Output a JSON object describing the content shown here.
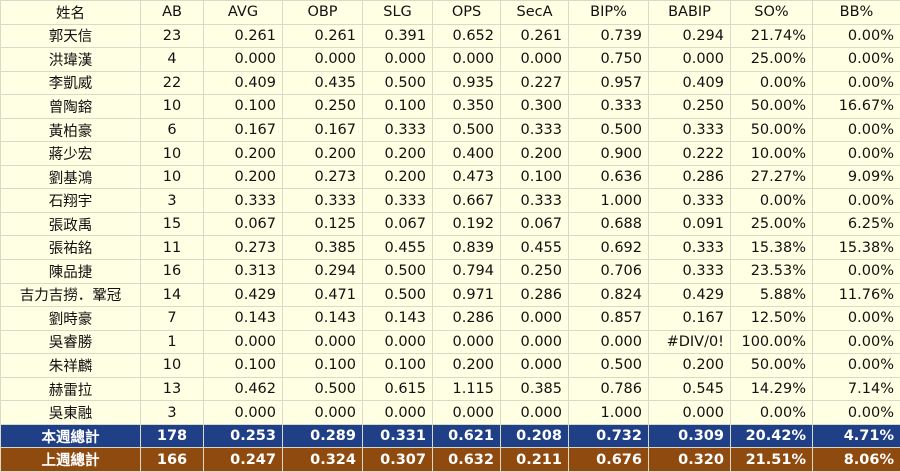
{
  "table": {
    "header": [
      "姓名",
      "AB",
      "AVG",
      "OBP",
      "SLG",
      "OPS",
      "SecA",
      "BIP%",
      "BABIP",
      "SO%",
      "BB%"
    ],
    "rows": [
      [
        "郭天信",
        "23",
        "0.261",
        "0.261",
        "0.391",
        "0.652",
        "0.261",
        "0.739",
        "0.294",
        "21.74%",
        "0.00%"
      ],
      [
        "洪瑋漢",
        "4",
        "0.000",
        "0.000",
        "0.000",
        "0.000",
        "0.000",
        "0.750",
        "0.000",
        "25.00%",
        "0.00%"
      ],
      [
        "李凱威",
        "22",
        "0.409",
        "0.435",
        "0.500",
        "0.935",
        "0.227",
        "0.957",
        "0.409",
        "0.00%",
        "0.00%"
      ],
      [
        "曾陶鎔",
        "10",
        "0.100",
        "0.250",
        "0.100",
        "0.350",
        "0.300",
        "0.333",
        "0.250",
        "50.00%",
        "16.67%"
      ],
      [
        "黃柏豪",
        "6",
        "0.167",
        "0.167",
        "0.333",
        "0.500",
        "0.333",
        "0.500",
        "0.333",
        "50.00%",
        "0.00%"
      ],
      [
        "蔣少宏",
        "10",
        "0.200",
        "0.200",
        "0.200",
        "0.400",
        "0.200",
        "0.900",
        "0.222",
        "10.00%",
        "0.00%"
      ],
      [
        "劉基鴻",
        "10",
        "0.200",
        "0.273",
        "0.200",
        "0.473",
        "0.100",
        "0.636",
        "0.286",
        "27.27%",
        "9.09%"
      ],
      [
        "石翔宇",
        "3",
        "0.333",
        "0.333",
        "0.333",
        "0.667",
        "0.333",
        "1.000",
        "0.333",
        "0.00%",
        "0.00%"
      ],
      [
        "張政禹",
        "15",
        "0.067",
        "0.125",
        "0.067",
        "0.192",
        "0.067",
        "0.688",
        "0.091",
        "25.00%",
        "6.25%"
      ],
      [
        "張祐銘",
        "11",
        "0.273",
        "0.385",
        "0.455",
        "0.839",
        "0.455",
        "0.692",
        "0.333",
        "15.38%",
        "15.38%"
      ],
      [
        "陳品捷",
        "16",
        "0.313",
        "0.294",
        "0.500",
        "0.794",
        "0.250",
        "0.706",
        "0.333",
        "23.53%",
        "0.00%"
      ],
      [
        "吉力吉撈．鞏冠",
        "14",
        "0.429",
        "0.471",
        "0.500",
        "0.971",
        "0.286",
        "0.824",
        "0.429",
        "5.88%",
        "11.76%"
      ],
      [
        "劉時豪",
        "7",
        "0.143",
        "0.143",
        "0.143",
        "0.286",
        "0.000",
        "0.857",
        "0.167",
        "12.50%",
        "0.00%"
      ],
      [
        "吳睿勝",
        "1",
        "0.000",
        "0.000",
        "0.000",
        "0.000",
        "0.000",
        "0.000",
        "#DIV/0!",
        "100.00%",
        "0.00%"
      ],
      [
        "朱祥麟",
        "10",
        "0.100",
        "0.100",
        "0.100",
        "0.200",
        "0.000",
        "0.500",
        "0.200",
        "50.00%",
        "0.00%"
      ],
      [
        "赫雷拉",
        "13",
        "0.462",
        "0.500",
        "0.615",
        "1.115",
        "0.385",
        "0.786",
        "0.545",
        "14.29%",
        "7.14%"
      ],
      [
        "吳東融",
        "3",
        "0.000",
        "0.000",
        "0.000",
        "0.000",
        "0.000",
        "1.000",
        "0.000",
        "0.00%",
        "0.00%"
      ]
    ],
    "totals": [
      [
        "本週總計",
        "178",
        "0.253",
        "0.289",
        "0.331",
        "0.621",
        "0.208",
        "0.732",
        "0.309",
        "20.42%",
        "4.71%"
      ],
      [
        "上週總計",
        "166",
        "0.247",
        "0.324",
        "0.307",
        "0.632",
        "0.211",
        "0.676",
        "0.320",
        "21.51%",
        "8.06%"
      ]
    ]
  }
}
